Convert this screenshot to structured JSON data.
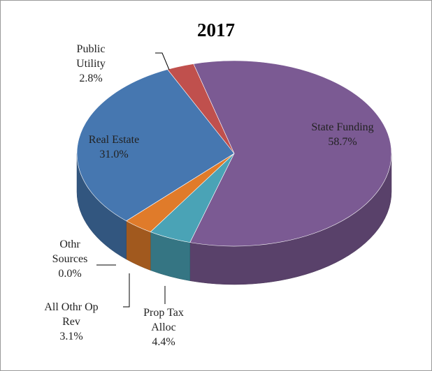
{
  "chart_data": {
    "type": "pie",
    "title": "2017",
    "categories": [
      "State Funding",
      "Prop Tax Alloc",
      "All Othr Op Rev",
      "Othr Sources",
      "Real Estate",
      "Public Utility"
    ],
    "values": [
      58.7,
      4.4,
      3.1,
      0.0,
      31.0,
      2.8
    ],
    "value_labels": [
      "58.7%",
      "4.4%",
      "3.1%",
      "0.0%",
      "31.0%",
      "2.8%"
    ],
    "colors": [
      "#7b5a93",
      "#4aa3b6",
      "#e07b2a",
      "#9bbb59",
      "#4677b0",
      "#c0504d"
    ]
  }
}
